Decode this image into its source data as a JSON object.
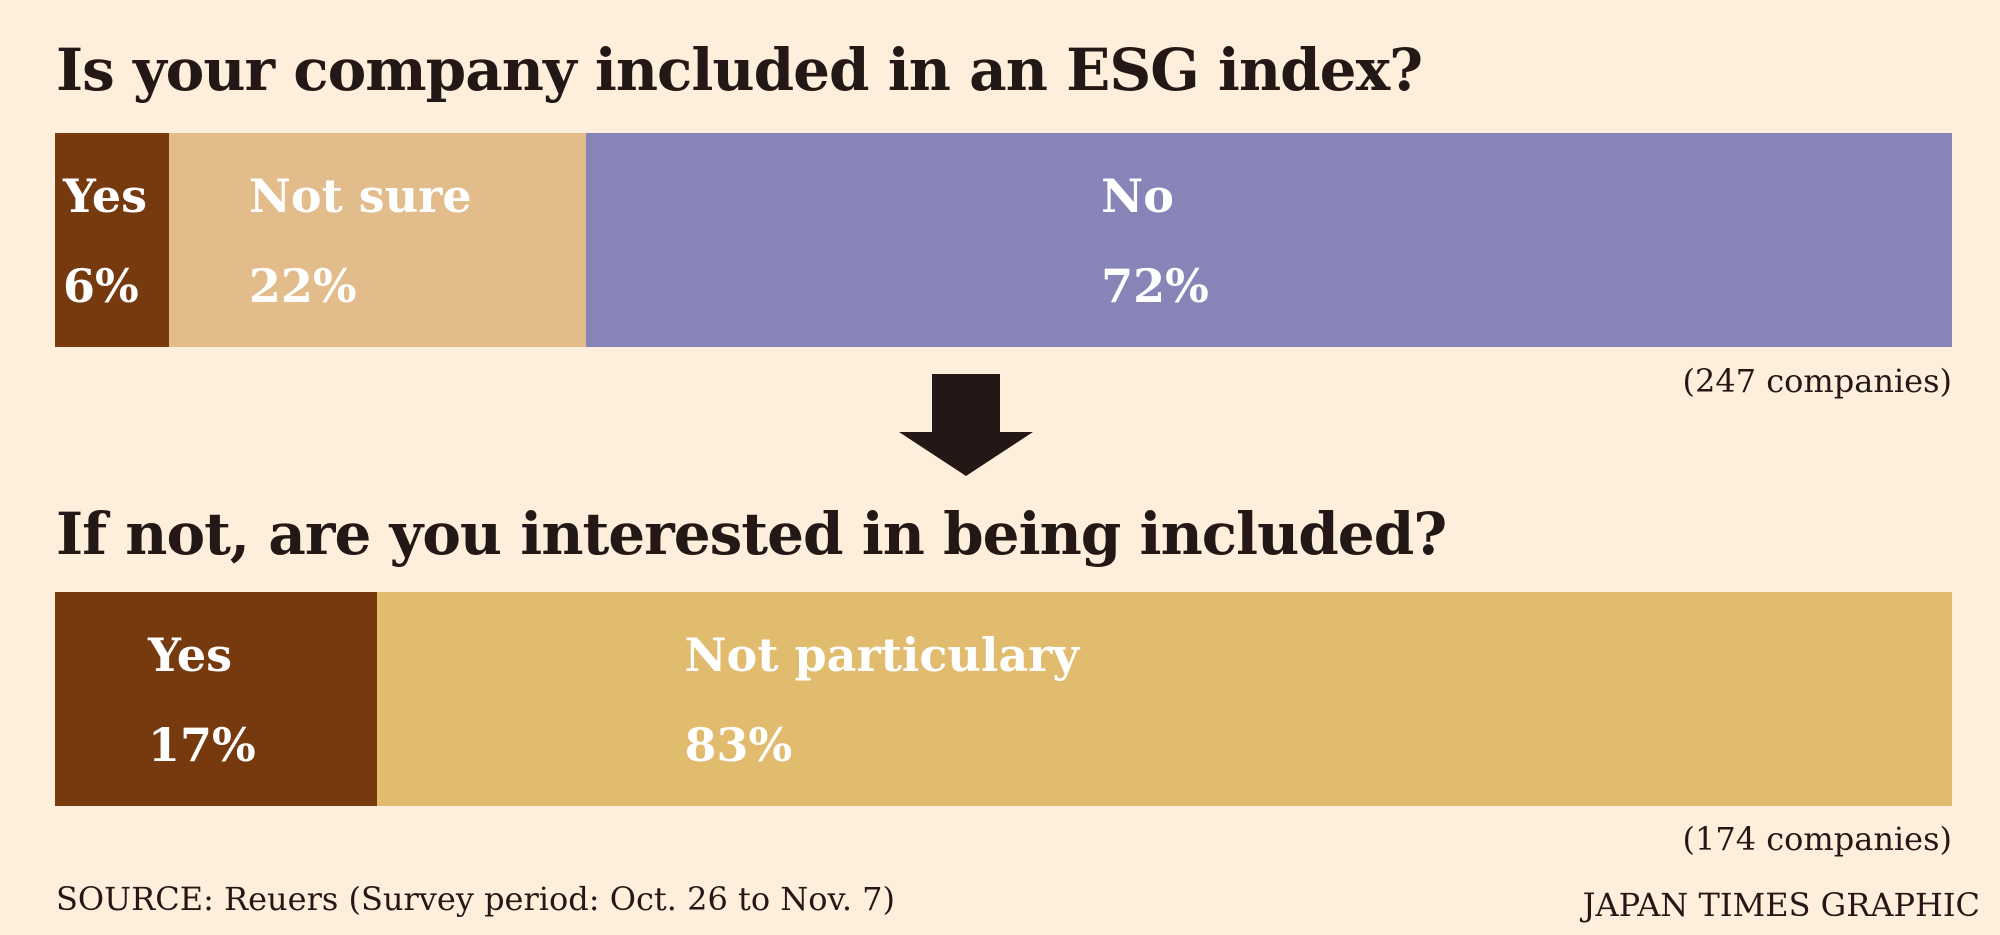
{
  "chart_data": [
    {
      "type": "bar",
      "subtype": "stacked-100",
      "title": "Is your company included in an ESG index?",
      "categories": [
        "Yes",
        "Not sure",
        "No"
      ],
      "values": [
        6,
        22,
        72
      ],
      "value_labels": [
        "6%",
        "22%",
        "72%"
      ],
      "colors": [
        "#773a0f",
        "#e2bc8a",
        "#8785b8"
      ],
      "note": "(247 companies)"
    },
    {
      "type": "bar",
      "subtype": "stacked-100",
      "title": "If not, are you interested in being included?",
      "categories": [
        "Yes",
        "Not particulary"
      ],
      "values": [
        17,
        83
      ],
      "value_labels": [
        "17%",
        "83%"
      ],
      "colors": [
        "#773a0f",
        "#e1bb6e"
      ],
      "note": "(174 companies)"
    }
  ],
  "source": "SOURCE: Reuers (Survey period: Oct. 26 to Nov. 7)",
  "credit": "JAPAN TIMES GRAPHIC",
  "arrow_color": "#231815"
}
